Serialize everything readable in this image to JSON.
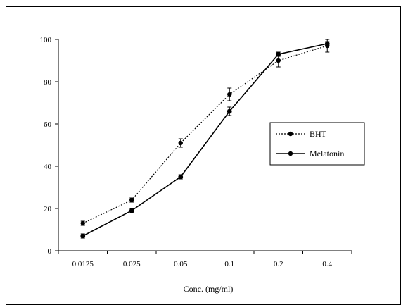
{
  "chart_data": {
    "type": "line",
    "title": "",
    "xlabel": "Conc. (mg/ml)",
    "ylabel": "",
    "categories": [
      "0.0125",
      "0.025",
      "0.05",
      "0.1",
      "0.2",
      "0.4"
    ],
    "ylim": [
      0,
      100
    ],
    "yticks": [
      0,
      20,
      40,
      60,
      80,
      100
    ],
    "grid": false,
    "legend_position": "right",
    "series": [
      {
        "name": "BHT",
        "values": [
          13,
          24,
          51,
          74,
          90,
          97
        ],
        "errors": [
          1,
          1,
          2,
          3,
          3,
          3
        ],
        "line_style": "dotted",
        "color": "#000000"
      },
      {
        "name": "Melatonin",
        "values": [
          7,
          19,
          35,
          66,
          93,
          98
        ],
        "errors": [
          1,
          1,
          1,
          2,
          1,
          1
        ],
        "line_style": "solid",
        "color": "#000000"
      }
    ]
  }
}
